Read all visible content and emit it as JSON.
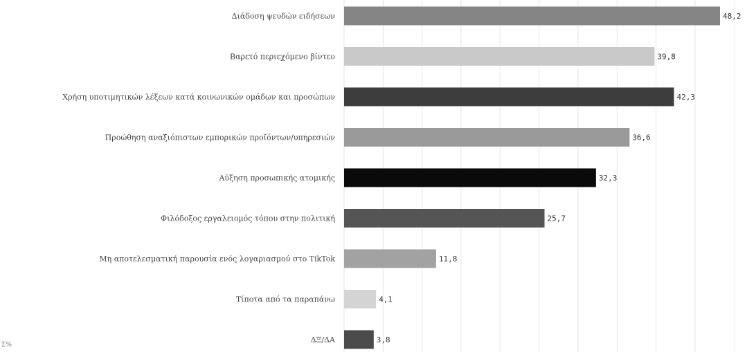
{
  "chart_data": {
    "type": "bar",
    "orientation": "horizontal",
    "categories": [
      "Διάδοση ψευδών ειδήσεων",
      "Βαρετό περιεχόμενο βίντεο",
      "Χρήση υποτιμητικών λέξεων κατά κοινωνικών ομάδων και προσώπων",
      "Προώθηση αναξιόπιστων εμπορικών προϊόντων/υπηρεσιών",
      "Αύξηση προσωπικής ατομικής",
      "Φιλόδοξος εργαλειομός τόπου στην πολιτική",
      "Μη αποτελεσματική παρουσία ενός λογαριασμού στο TikTok",
      "Τίποτα από τα παραπάνω",
      "ΔΞ/ΔΑ"
    ],
    "values": [
      48.2,
      39.8,
      42.3,
      36.6,
      32.3,
      25.7,
      11.8,
      4.1,
      3.8
    ],
    "value_labels": [
      "48,2",
      "39,8",
      "42,3",
      "36,6",
      "32,3",
      "25,7",
      "11,8",
      "4,1",
      "3,8"
    ],
    "bar_colors": [
      "#858585",
      "#c9c9c9",
      "#3d3d3d",
      "#9a9a9a",
      "#0a0a0a",
      "#555555",
      "#a2a2a2",
      "#d4d4d4",
      "#4b4b4b"
    ],
    "xlim": [
      0,
      50
    ],
    "grid": true,
    "title": "",
    "xlabel": "",
    "ylabel": ""
  },
  "corner_note": "Σ%"
}
